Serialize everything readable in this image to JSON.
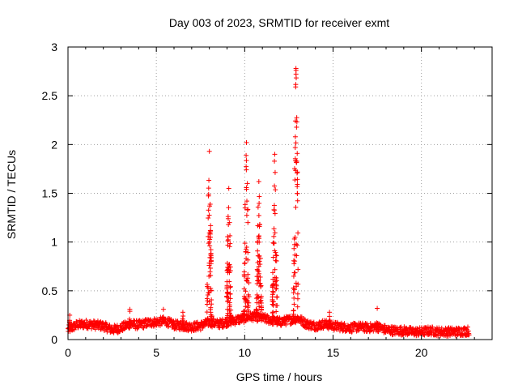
{
  "chart_data": {
    "type": "scatter",
    "title": "Day 003 of 2023, SRMTID for receiver exmt",
    "xlabel": "GPS time / hours",
    "ylabel": "SRMTID / TECUs",
    "xlim": [
      0,
      24
    ],
    "ylim": [
      0,
      3
    ],
    "xticks": [
      0,
      5,
      10,
      15,
      20
    ],
    "xtick_labels": [
      "0",
      "5",
      "10",
      "15",
      "20"
    ],
    "yticks": [
      0,
      0.5,
      1,
      1.5,
      2,
      2.5,
      3
    ],
    "ytick_labels": [
      "0",
      "0.5",
      "1",
      "1.5",
      "2",
      "2.5",
      "3"
    ],
    "grid": true,
    "marker": "+",
    "color": "#ff0000",
    "series": [
      {
        "name": "SRMTID",
        "baseline": [
          [
            0.0,
            0.1
          ],
          [
            0.5,
            0.15
          ],
          [
            1.0,
            0.16
          ],
          [
            1.5,
            0.15
          ],
          [
            2.0,
            0.14
          ],
          [
            2.5,
            0.1
          ],
          [
            3.0,
            0.12
          ],
          [
            3.5,
            0.16
          ],
          [
            4.0,
            0.15
          ],
          [
            4.5,
            0.17
          ],
          [
            5.0,
            0.18
          ],
          [
            5.5,
            0.19
          ],
          [
            6.0,
            0.15
          ],
          [
            6.5,
            0.14
          ],
          [
            7.0,
            0.13
          ],
          [
            7.5,
            0.14
          ],
          [
            8.0,
            0.18
          ],
          [
            8.5,
            0.16
          ],
          [
            9.0,
            0.18
          ],
          [
            9.5,
            0.2
          ],
          [
            10.0,
            0.22
          ],
          [
            10.5,
            0.24
          ],
          [
            11.0,
            0.22
          ],
          [
            11.5,
            0.2
          ],
          [
            12.0,
            0.18
          ],
          [
            12.5,
            0.2
          ],
          [
            13.0,
            0.22
          ],
          [
            13.5,
            0.16
          ],
          [
            14.0,
            0.14
          ],
          [
            14.5,
            0.16
          ],
          [
            15.0,
            0.14
          ],
          [
            15.5,
            0.13
          ],
          [
            16.0,
            0.12
          ],
          [
            16.5,
            0.13
          ],
          [
            17.0,
            0.12
          ],
          [
            17.5,
            0.13
          ],
          [
            18.0,
            0.1
          ],
          [
            18.5,
            0.09
          ],
          [
            19.0,
            0.09
          ],
          [
            19.5,
            0.08
          ],
          [
            20.0,
            0.08
          ],
          [
            20.5,
            0.09
          ],
          [
            21.0,
            0.08
          ],
          [
            21.5,
            0.08
          ],
          [
            22.0,
            0.08
          ],
          [
            22.7,
            0.09
          ]
        ],
        "spikes": [
          {
            "x": 0.1,
            "peak": 0.25,
            "width": 0.1
          },
          {
            "x": 3.5,
            "peak": 0.31,
            "width": 0.1
          },
          {
            "x": 5.4,
            "peak": 0.31,
            "width": 0.1
          },
          {
            "x": 6.5,
            "peak": 0.28,
            "width": 0.1
          },
          {
            "x": 8.0,
            "peak": 1.93,
            "width": 0.32
          },
          {
            "x": 9.1,
            "peak": 1.55,
            "width": 0.3
          },
          {
            "x": 10.1,
            "peak": 2.02,
            "width": 0.35
          },
          {
            "x": 10.8,
            "peak": 1.62,
            "width": 0.35
          },
          {
            "x": 11.7,
            "peak": 1.9,
            "width": 0.32
          },
          {
            "x": 12.9,
            "peak": 2.78,
            "width": 0.32
          },
          {
            "x": 14.8,
            "peak": 0.28,
            "width": 0.15
          },
          {
            "x": 17.5,
            "peak": 0.32,
            "width": 0.1
          }
        ]
      }
    ]
  }
}
